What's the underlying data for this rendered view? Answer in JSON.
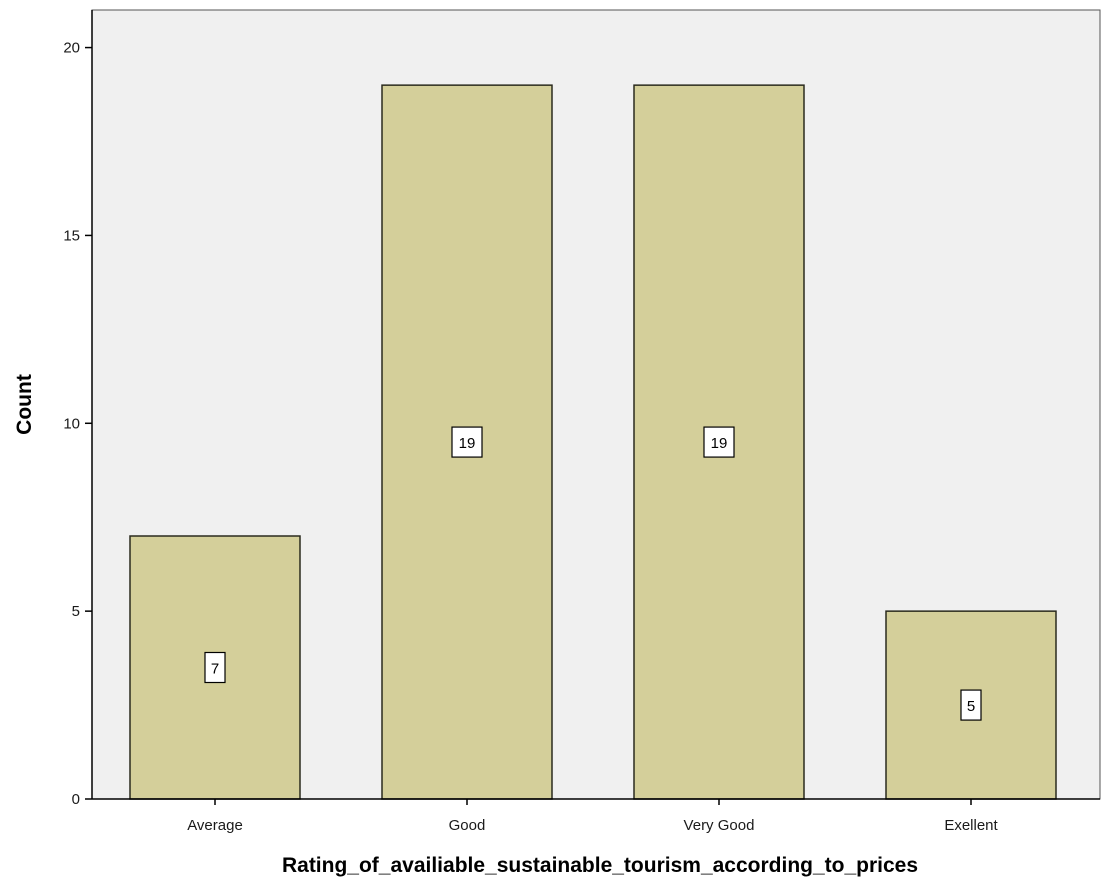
{
  "chart_data": {
    "type": "bar",
    "categories": [
      "Average",
      "Good",
      "Very Good",
      "Exellent"
    ],
    "values": [
      7,
      19,
      19,
      5
    ],
    "data_labels": [
      "7",
      "19",
      "19",
      "5"
    ],
    "title": "",
    "xlabel": "Rating_of_availiable_sustainable_tourism_according_to_prices",
    "ylabel": "Count",
    "ylim": [
      0,
      21
    ],
    "yticks": [
      0,
      5,
      10,
      15,
      20
    ],
    "ytick_labels": [
      "0",
      "5",
      "10",
      "15",
      "20"
    ],
    "grid": false,
    "legend": "none",
    "colors": {
      "bar_fill": "#d4cf9a",
      "bar_stroke": "#2a2a1e",
      "plot_background": "#f0f0f0",
      "axis": "#000000"
    }
  }
}
